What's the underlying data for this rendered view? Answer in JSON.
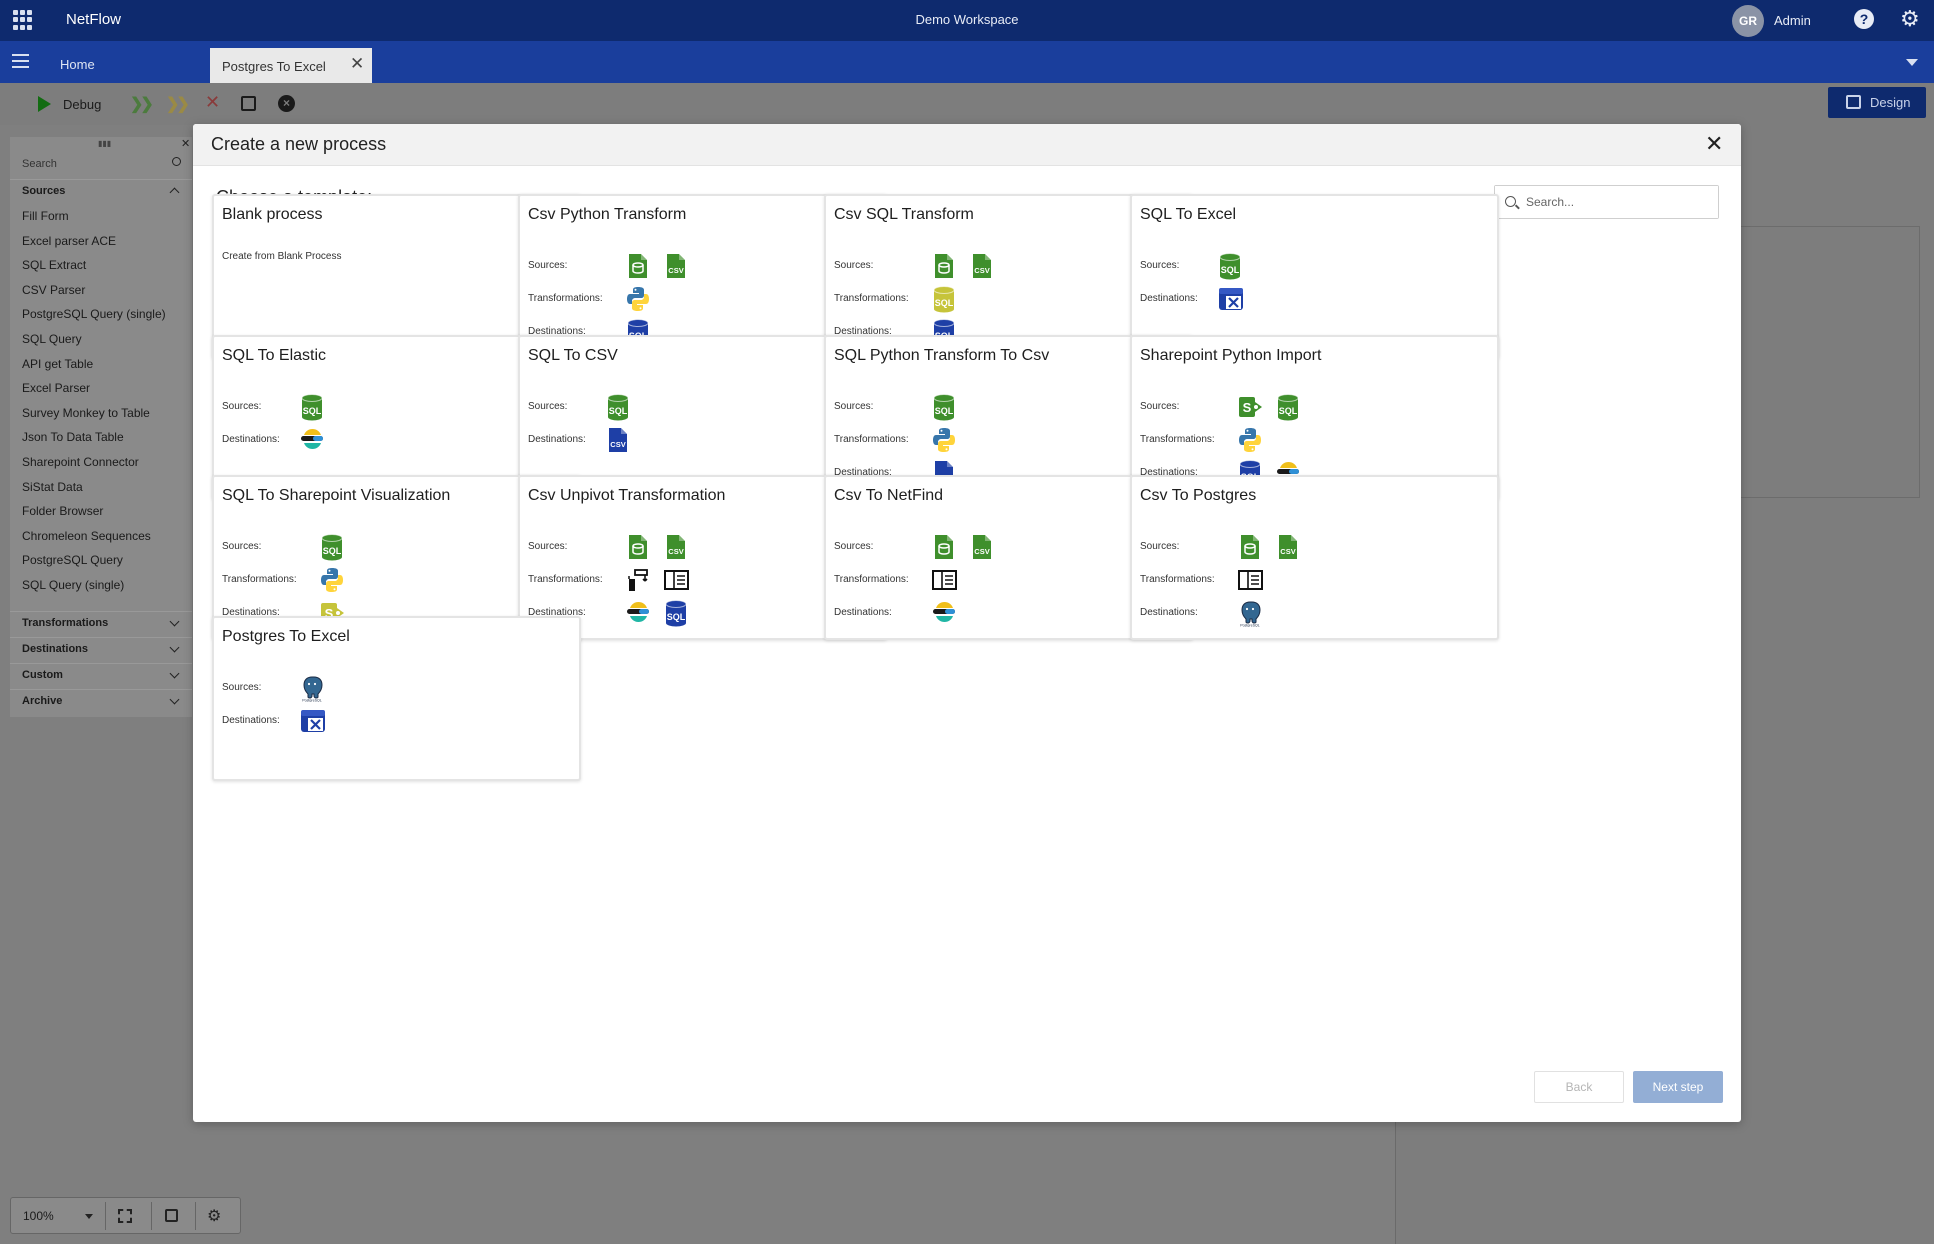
{
  "topbar": {
    "brand": "NetFlow",
    "workspace": "Demo Workspace",
    "avatar_initials": "GR",
    "user_name": "Admin"
  },
  "tabs": {
    "home": "Home",
    "active": "Postgres To Excel",
    "close_glyph": "✕"
  },
  "toolbar": {
    "debug_label": "Debug",
    "design_label": "Design"
  },
  "left_panel": {
    "search_placeholder": "Search",
    "sections": {
      "sources": "Sources",
      "transformations": "Transformations",
      "destinations": "Destinations",
      "custom": "Custom",
      "archive": "Archive"
    },
    "source_items": [
      "Fill Form",
      "Excel parser ACE",
      "SQL Extract",
      "CSV Parser",
      "PostgreSQL Query (single)",
      "SQL Query",
      "API get Table",
      "Excel Parser",
      "Survey Monkey to Table",
      "Json To Data Table",
      "Sharepoint Connector",
      "SiStat Data",
      "Folder Browser",
      "Chromeleon Sequences",
      "PostgreSQL Query",
      "SQL Query (single)"
    ]
  },
  "bottom_bar": {
    "zoom": "100%"
  },
  "modal": {
    "title": "Create a new process",
    "choose_label": "Choose a template:",
    "search_placeholder": "Search...",
    "back_label": "Back",
    "next_label": "Next step",
    "row_labels": {
      "sources": "Sources:",
      "transformations": "Transformations:",
      "destinations": "Destinations:"
    },
    "templates": [
      {
        "title": "Blank process",
        "description": "Create from Blank Process"
      },
      {
        "title": "Csv Python Transform",
        "sources": [
          "file-db-icon",
          "csv-icon"
        ],
        "transformations": [
          "python-icon"
        ],
        "destinations": [
          "sql-db-icon"
        ]
      },
      {
        "title": "Csv SQL Transform",
        "sources": [
          "file-db-icon",
          "csv-icon"
        ],
        "transformations": [
          "sql-transform-icon"
        ],
        "destinations": [
          "sql-db-icon"
        ]
      },
      {
        "title": "SQL To Excel",
        "sources": [
          "sql-icon"
        ],
        "destinations": [
          "excel-icon"
        ]
      },
      {
        "title": "SQL To Elastic",
        "sources": [
          "sql-icon"
        ],
        "destinations": [
          "elastic-icon"
        ]
      },
      {
        "title": "SQL To CSV",
        "sources": [
          "sql-icon"
        ],
        "destinations": [
          "csv-dest-icon"
        ]
      },
      {
        "title": "SQL Python Transform To Csv",
        "sources": [
          "sql-icon"
        ],
        "transformations": [
          "python-icon"
        ],
        "destinations": [
          "csv-dest-icon"
        ]
      },
      {
        "title": "Sharepoint Python Import",
        "sources": [
          "sharepoint-icon",
          "sql-icon"
        ],
        "transformations": [
          "python-icon"
        ],
        "destinations": [
          "sql-db-icon",
          "elastic-icon"
        ]
      },
      {
        "title": "SQL To Sharepoint Visualization",
        "sources": [
          "sql-icon"
        ],
        "transformations": [
          "python-icon"
        ],
        "destinations": [
          "sharepoint-dest-icon"
        ]
      },
      {
        "title": "Csv Unpivot Transformation",
        "sources": [
          "file-db-icon",
          "csv-icon"
        ],
        "transformations": [
          "unpivot-icon",
          "table-icon"
        ],
        "destinations": [
          "elastic-icon",
          "sql-db-icon"
        ]
      },
      {
        "title": "Csv To NetFind",
        "sources": [
          "file-db-icon",
          "csv-icon"
        ],
        "transformations": [
          "table-icon"
        ],
        "destinations": [
          "elastic-icon"
        ]
      },
      {
        "title": "Csv To Postgres",
        "sources": [
          "file-db-icon",
          "csv-icon"
        ],
        "transformations": [
          "table-icon"
        ],
        "destinations": [
          "postgres-icon"
        ]
      },
      {
        "title": "Postgres To Excel",
        "sources": [
          "postgres-icon"
        ],
        "destinations": [
          "excel-icon"
        ]
      }
    ]
  },
  "colors": {
    "topbar": "#0e2a6e",
    "tabbar": "#1a3e9c",
    "source_green": "#3f8f2c",
    "dest_blue": "#1e3fa6",
    "next_button": "#93aed5"
  }
}
